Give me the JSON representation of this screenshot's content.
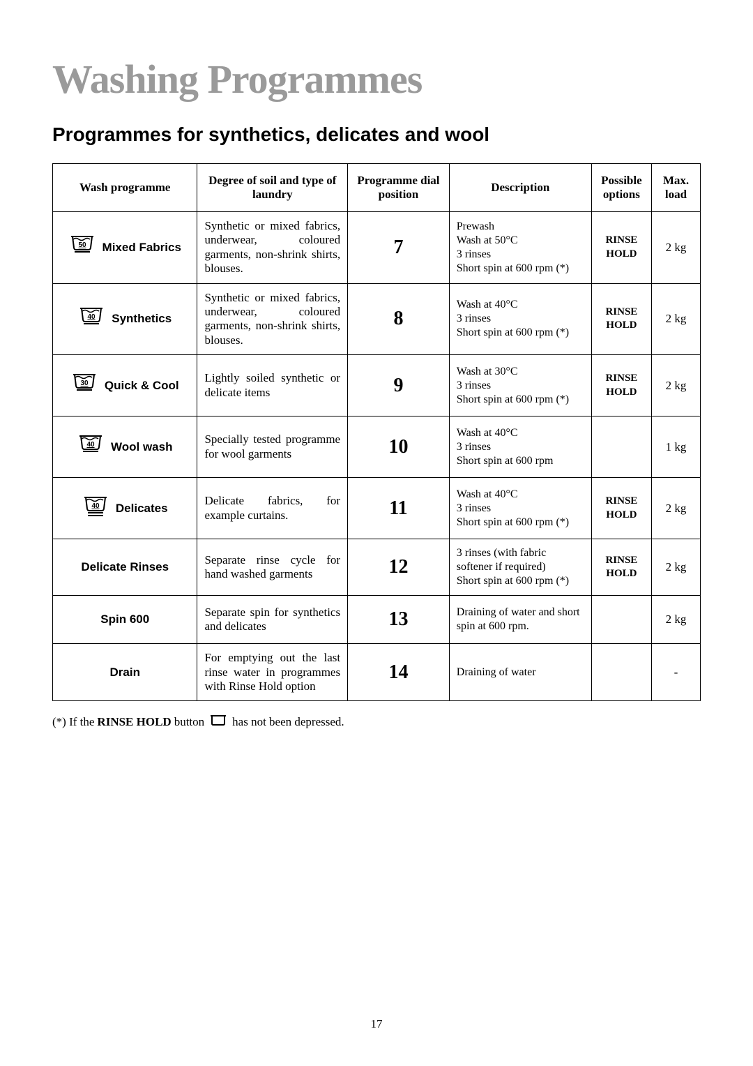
{
  "title": "Washing Programmes",
  "subtitle": "Programmes for synthetics, delicates and wool",
  "headers": {
    "prog": "Wash programme",
    "soil": "Degree of soil and type of laundry",
    "dial": "Programme dial position",
    "desc": "Description",
    "opt": "Possible options",
    "load": "Max. load"
  },
  "rows": [
    {
      "icon_temp": "50",
      "icon_bars": 1,
      "name": "Mixed Fabrics",
      "soil": "Synthetic or mixed fabrics, underwear, coloured garments, non-shrink shirts, blouses.",
      "dial": "7",
      "desc": "Prewash\nWash at 50°C\n3 rinses\nShort spin at 600 rpm (*)",
      "opt": "RINSE HOLD",
      "load": "2 kg"
    },
    {
      "icon_temp": "40",
      "icon_bars": 1,
      "name": "Synthetics",
      "soil": "Synthetic or mixed fabrics, underwear, coloured garments, non-shrink shirts, blouses.",
      "dial": "8",
      "desc": "Wash at 40°C\n3 rinses\nShort spin at 600 rpm (*)",
      "opt": "RINSE HOLD",
      "load": "2 kg"
    },
    {
      "icon_temp": "30",
      "icon_bars": 1,
      "name": "Quick & Cool",
      "soil": "Lightly soiled synthetic or delicate items",
      "dial": "9",
      "desc": "Wash at 30°C\n3 rinses\nShort spin at 600 rpm (*)",
      "opt": "RINSE HOLD",
      "load": "2 kg"
    },
    {
      "icon_temp": "40",
      "icon_bars": 1,
      "name": "Wool wash",
      "soil": "Specially tested programme for wool garments",
      "dial": "10",
      "desc": "Wash at 40°C\n3 rinses\nShort spin at 600 rpm",
      "opt": "",
      "load": "1 kg"
    },
    {
      "icon_temp": "40",
      "icon_bars": 2,
      "name": "Delicates",
      "soil": "Delicate fabrics, for example curtains.",
      "dial": "11",
      "desc": "Wash at 40°C\n3 rinses\nShort spin at 600 rpm (*)",
      "opt": "RINSE HOLD",
      "load": "2 kg"
    },
    {
      "icon_temp": "",
      "icon_bars": 0,
      "name": "Delicate Rinses",
      "soil": "Separate rinse cycle for hand washed garments",
      "dial": "12",
      "desc": "3 rinses (with fabric softener if required)\nShort spin at 600 rpm (*)",
      "opt": "RINSE HOLD",
      "load": "2 kg"
    },
    {
      "icon_temp": "",
      "icon_bars": 0,
      "name": "Spin 600",
      "soil": "Separate spin for synthetics and delicates",
      "dial": "13",
      "desc": "Draining of water and short spin at 600 rpm.",
      "opt": "",
      "load": "2 kg"
    },
    {
      "icon_temp": "",
      "icon_bars": 0,
      "name": "Drain",
      "soil": "For emptying out the last rinse water in programmes with Rinse Hold option",
      "dial": "14",
      "desc": "Draining of water",
      "opt": "",
      "load": "-"
    }
  ],
  "footnote_prefix": "(*) If the ",
  "footnote_bold": "RINSE HOLD",
  "footnote_mid": " button ",
  "footnote_suffix": " has not been depressed.",
  "page_number": "17",
  "styling": {
    "title_color": "#9a9a9a",
    "title_fontsize": 58,
    "subtitle_fontsize": 28,
    "border_color": "#000000",
    "background_color": "#ffffff",
    "font_body": "Times New Roman",
    "font_bold_labels": "Arial"
  }
}
